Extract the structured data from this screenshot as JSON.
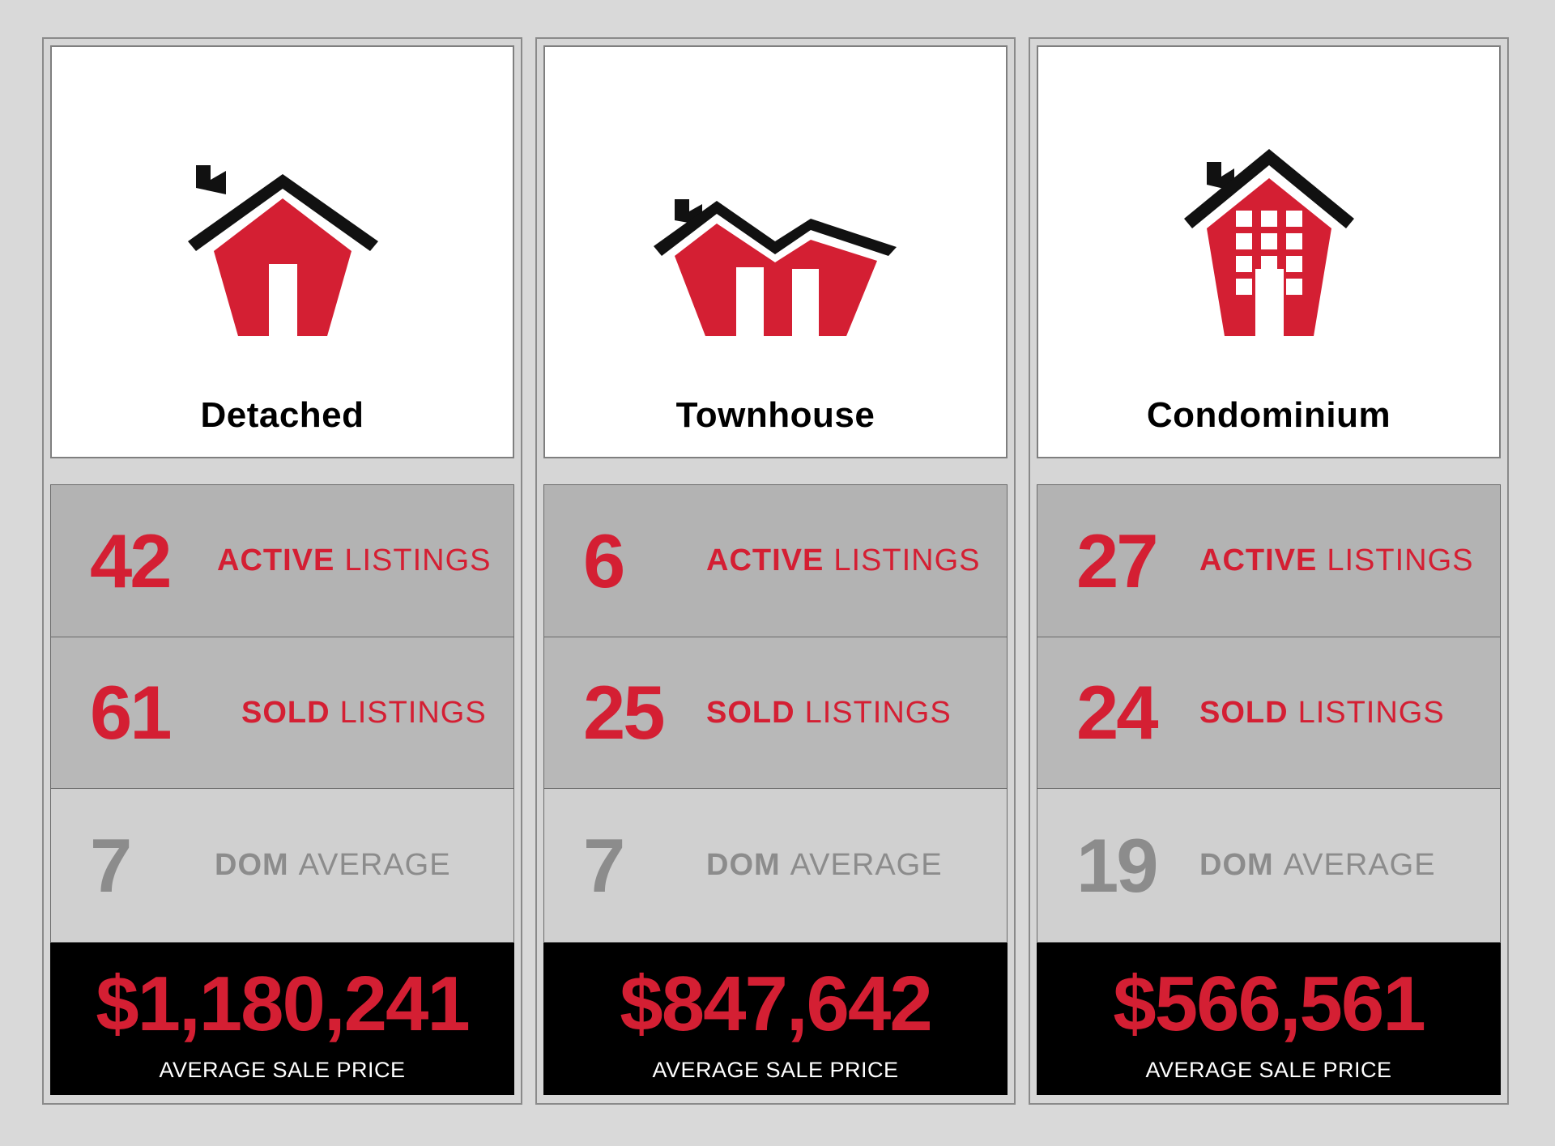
{
  "colors": {
    "accent": "#d41f33",
    "muted": "#8c8c8c",
    "price_bg": "#000000"
  },
  "cards": [
    {
      "type": "Detached",
      "icon": "detached-house-icon",
      "active": {
        "value": "42",
        "bold": "ACTIVE",
        "rest": "LISTINGS"
      },
      "sold": {
        "value": "61",
        "bold": "SOLD",
        "rest": "LISTINGS"
      },
      "dom": {
        "value": "7",
        "bold": "DOM",
        "rest": "AVERAGE"
      },
      "price": {
        "value": "$1,180,241",
        "label": "AVERAGE SALE PRICE"
      }
    },
    {
      "type": "Townhouse",
      "icon": "townhouse-icon",
      "active": {
        "value": "6",
        "bold": "ACTIVE",
        "rest": "LISTINGS"
      },
      "sold": {
        "value": "25",
        "bold": "SOLD",
        "rest": "LISTINGS"
      },
      "dom": {
        "value": "7",
        "bold": "DOM",
        "rest": "AVERAGE"
      },
      "price": {
        "value": "$847,642",
        "label": "AVERAGE SALE PRICE"
      }
    },
    {
      "type": "Condominium",
      "icon": "condominium-building-icon",
      "active": {
        "value": "27",
        "bold": "ACTIVE",
        "rest": "LISTINGS"
      },
      "sold": {
        "value": "24",
        "bold": "SOLD",
        "rest": "LISTINGS"
      },
      "dom": {
        "value": "19",
        "bold": "DOM",
        "rest": "AVERAGE"
      },
      "price": {
        "value": "$566,561",
        "label": "AVERAGE SALE PRICE"
      }
    }
  ]
}
